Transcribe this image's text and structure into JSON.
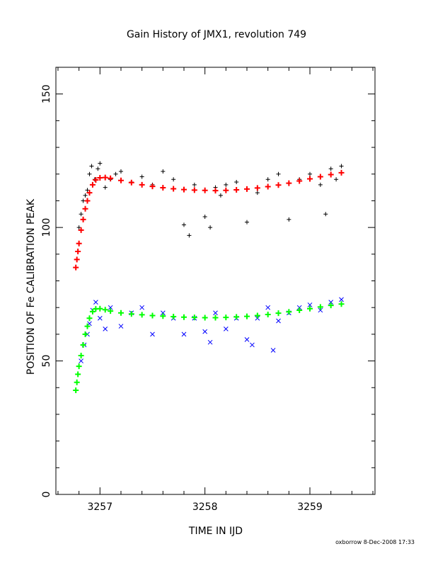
{
  "chart_data": {
    "type": "scatter",
    "title": "Gain History of JMX1, revolution 749",
    "xlabel": "TIME IN IJD",
    "ylabel": "POSITION OF Fe CALIBRATION PEAK",
    "xlim": [
      3256.58,
      3259.62
    ],
    "ylim": [
      0,
      160
    ],
    "x_ticks": [
      3257,
      3258,
      3259
    ],
    "y_ticks": [
      0,
      50,
      100,
      150
    ],
    "footer": "oxborrow   8-Dec-2008 17:33",
    "grid": false,
    "series": [
      {
        "marker": "+",
        "color": "#000000",
        "x": [
          3256.8,
          3256.82,
          3256.84,
          3256.86,
          3256.88,
          3256.9,
          3256.92,
          3256.95,
          3256.98,
          3257.0,
          3257.05,
          3257.1,
          3257.15,
          3257.2,
          3257.3,
          3257.4,
          3257.5,
          3257.6,
          3257.7,
          3257.8,
          3257.85,
          3257.9,
          3258.0,
          3258.05,
          3258.1,
          3258.15,
          3258.2,
          3258.3,
          3258.4,
          3258.5,
          3258.6,
          3258.7,
          3258.8,
          3258.9,
          3259.0,
          3259.1,
          3259.15,
          3259.2,
          3259.25,
          3259.3
        ],
        "y": [
          100,
          105,
          110,
          112,
          114,
          120,
          123,
          118,
          122,
          124,
          115,
          118,
          120,
          121,
          117,
          119,
          116,
          121,
          118,
          101,
          97,
          116,
          104,
          100,
          115,
          112,
          116,
          117,
          102,
          113,
          118,
          120,
          103,
          118,
          120,
          116,
          105,
          122,
          118,
          123
        ]
      },
      {
        "marker": "x",
        "color": "#0000ff",
        "x": [
          3256.82,
          3256.85,
          3256.88,
          3256.9,
          3256.93,
          3256.96,
          3257.0,
          3257.05,
          3257.1,
          3257.2,
          3257.3,
          3257.4,
          3257.5,
          3257.6,
          3257.7,
          3257.8,
          3257.9,
          3258.0,
          3258.05,
          3258.1,
          3258.2,
          3258.3,
          3258.4,
          3258.45,
          3258.5,
          3258.6,
          3258.65,
          3258.7,
          3258.8,
          3258.9,
          3259.0,
          3259.1,
          3259.2,
          3259.3
        ],
        "y": [
          50,
          56,
          60,
          64,
          69,
          72,
          66,
          62,
          70,
          63,
          68,
          70,
          60,
          68,
          66,
          60,
          66,
          61,
          57,
          68,
          62,
          66,
          58,
          56,
          66,
          70,
          54,
          65,
          68,
          70,
          71,
          69,
          72,
          73
        ]
      },
      {
        "marker": "+",
        "color": "#ff0000",
        "x": [
          3256.77,
          3256.78,
          3256.79,
          3256.8,
          3256.82,
          3256.84,
          3256.86,
          3256.88,
          3256.9,
          3256.93,
          3256.96,
          3257.0,
          3257.05,
          3257.1,
          3257.2,
          3257.3,
          3257.4,
          3257.5,
          3257.6,
          3257.7,
          3257.8,
          3257.9,
          3258.0,
          3258.1,
          3258.2,
          3258.3,
          3258.4,
          3258.5,
          3258.6,
          3258.7,
          3258.8,
          3258.9,
          3259.0,
          3259.1,
          3259.2,
          3259.3
        ],
        "y": [
          85,
          88,
          91,
          94,
          99,
          103,
          107,
          110,
          113,
          116,
          117.8,
          118.6,
          118.7,
          118.4,
          117.6,
          116.8,
          116.0,
          115.4,
          114.9,
          114.5,
          114.2,
          114.0,
          113.9,
          113.8,
          113.9,
          114.1,
          114.4,
          114.8,
          115.3,
          115.9,
          116.6,
          117.4,
          118.2,
          119.0,
          119.8,
          120.5
        ]
      },
      {
        "marker": "+",
        "color": "#00ff00",
        "x": [
          3256.77,
          3256.78,
          3256.79,
          3256.8,
          3256.82,
          3256.84,
          3256.86,
          3256.88,
          3256.9,
          3256.93,
          3256.96,
          3257.0,
          3257.05,
          3257.1,
          3257.2,
          3257.3,
          3257.4,
          3257.5,
          3257.6,
          3257.7,
          3257.8,
          3257.9,
          3258.0,
          3258.1,
          3258.2,
          3258.3,
          3258.4,
          3258.5,
          3258.6,
          3258.7,
          3258.8,
          3258.9,
          3259.0,
          3259.1,
          3259.2,
          3259.3
        ],
        "y": [
          39,
          42,
          45,
          48,
          52,
          56,
          60,
          63,
          66,
          68.5,
          69.5,
          69.6,
          69.2,
          68.7,
          68.0,
          67.6,
          67.3,
          67.0,
          66.8,
          66.6,
          66.4,
          66.3,
          66.2,
          66.2,
          66.3,
          66.5,
          66.7,
          67.0,
          67.4,
          67.9,
          68.4,
          69.0,
          69.6,
          70.2,
          70.8,
          71.3
        ]
      }
    ]
  }
}
